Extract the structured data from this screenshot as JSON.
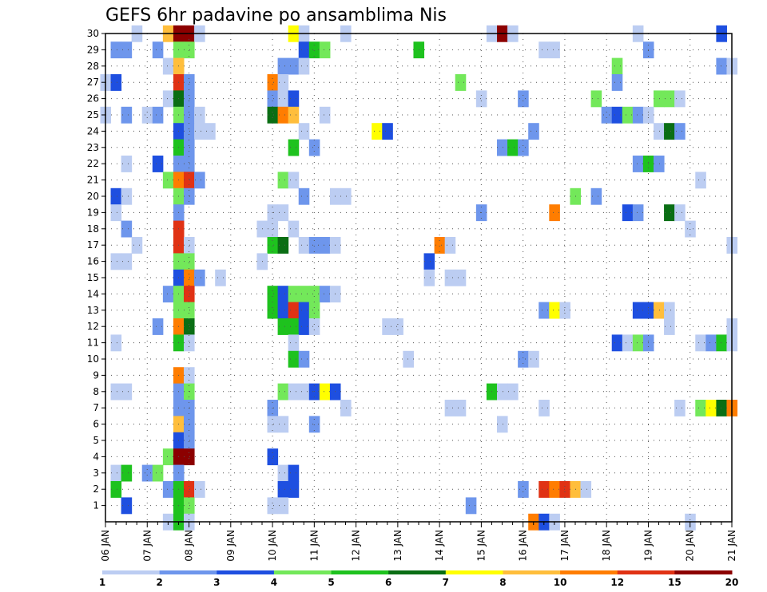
{
  "chart_data": {
    "type": "heatmap",
    "title": "GEFS 6hr padavine po ansamblima Nis",
    "xlabel": "",
    "ylabel": "",
    "x_axis": {
      "unit": "6-hour steps",
      "range": [
        0,
        60
      ],
      "tick_labels": [
        "06 JAN",
        "07 JAN",
        "08 JAN",
        "09 JAN",
        "10 JAN",
        "11 JAN",
        "12 JAN",
        "13 JAN",
        "14 JAN",
        "15 JAN",
        "16 JAN",
        "17 JAN",
        "18 JAN",
        "19 JAN",
        "20 JAN",
        "21 JAN"
      ]
    },
    "y_axis": {
      "tick_labels": [
        "1",
        "2",
        "3",
        "4",
        "5",
        "6",
        "7",
        "8",
        "9",
        "10",
        "11",
        "12",
        "13",
        "14",
        "15",
        "16",
        "17",
        "18",
        "19",
        "20",
        "21",
        "22",
        "23",
        "24",
        "25",
        "26",
        "27",
        "28",
        "29",
        "30"
      ],
      "range": [
        0,
        30
      ]
    },
    "grid": true,
    "colorbar": {
      "placement": "bottom",
      "colors": [
        "#bccdf2",
        "#6e96ec",
        "#1e4fe0",
        "#73e85a",
        "#1ec21e",
        "#0a6e14",
        "#ffff00",
        "#ffbe3c",
        "#ff7d00",
        "#e03214",
        "#8c0000"
      ],
      "tick_labels": [
        "1",
        "2",
        "3",
        "4",
        "5",
        "6",
        "7",
        "8",
        "10",
        "12",
        "15",
        "20"
      ]
    },
    "cells": [
      [
        30,
        3,
        0
      ],
      [
        30,
        6,
        7
      ],
      [
        30,
        7,
        10
      ],
      [
        30,
        8,
        10
      ],
      [
        30,
        9,
        0
      ],
      [
        30,
        18,
        6
      ],
      [
        30,
        19,
        0
      ],
      [
        30,
        23,
        0
      ],
      [
        30,
        37,
        0
      ],
      [
        30,
        38,
        10
      ],
      [
        30,
        39,
        0
      ],
      [
        30,
        51,
        0
      ],
      [
        30,
        59,
        2
      ],
      [
        29,
        1,
        1
      ],
      [
        29,
        2,
        1
      ],
      [
        29,
        5,
        1
      ],
      [
        29,
        7,
        3
      ],
      [
        29,
        8,
        3
      ],
      [
        29,
        19,
        2
      ],
      [
        29,
        20,
        4
      ],
      [
        29,
        21,
        3
      ],
      [
        29,
        30,
        4
      ],
      [
        29,
        42,
        0
      ],
      [
        29,
        43,
        0
      ],
      [
        29,
        52,
        1
      ],
      [
        28,
        6,
        0
      ],
      [
        28,
        7,
        7
      ],
      [
        28,
        17,
        1
      ],
      [
        28,
        18,
        1
      ],
      [
        28,
        19,
        0
      ],
      [
        28,
        49,
        3
      ],
      [
        28,
        59,
        1
      ],
      [
        28,
        60,
        0
      ],
      [
        27,
        0,
        0
      ],
      [
        27,
        1,
        2
      ],
      [
        27,
        7,
        9
      ],
      [
        27,
        8,
        1
      ],
      [
        27,
        16,
        8
      ],
      [
        27,
        17,
        0
      ],
      [
        27,
        34,
        3
      ],
      [
        27,
        49,
        1
      ],
      [
        26,
        6,
        0
      ],
      [
        26,
        7,
        5
      ],
      [
        26,
        8,
        1
      ],
      [
        26,
        16,
        1
      ],
      [
        26,
        17,
        0
      ],
      [
        26,
        18,
        2
      ],
      [
        26,
        36,
        0
      ],
      [
        26,
        40,
        1
      ],
      [
        26,
        47,
        3
      ],
      [
        26,
        53,
        3
      ],
      [
        26,
        54,
        3
      ],
      [
        26,
        55,
        0
      ],
      [
        25,
        0,
        0
      ],
      [
        25,
        2,
        1
      ],
      [
        25,
        4,
        0
      ],
      [
        25,
        5,
        1
      ],
      [
        25,
        7,
        3
      ],
      [
        25,
        8,
        1
      ],
      [
        25,
        9,
        0
      ],
      [
        25,
        16,
        5
      ],
      [
        25,
        17,
        8
      ],
      [
        25,
        18,
        7
      ],
      [
        25,
        21,
        0
      ],
      [
        25,
        48,
        1
      ],
      [
        25,
        49,
        2
      ],
      [
        25,
        50,
        3
      ],
      [
        25,
        51,
        1
      ],
      [
        25,
        52,
        0
      ],
      [
        24,
        7,
        2
      ],
      [
        24,
        8,
        1
      ],
      [
        24,
        9,
        0
      ],
      [
        24,
        10,
        0
      ],
      [
        24,
        19,
        0
      ],
      [
        24,
        26,
        6
      ],
      [
        24,
        27,
        2
      ],
      [
        24,
        41,
        1
      ],
      [
        24,
        53,
        0
      ],
      [
        24,
        54,
        5
      ],
      [
        24,
        55,
        1
      ],
      [
        23,
        7,
        4
      ],
      [
        23,
        8,
        1
      ],
      [
        23,
        18,
        4
      ],
      [
        23,
        20,
        1
      ],
      [
        23,
        38,
        1
      ],
      [
        23,
        39,
        4
      ],
      [
        23,
        40,
        1
      ],
      [
        22,
        2,
        0
      ],
      [
        22,
        5,
        2
      ],
      [
        22,
        7,
        1
      ],
      [
        22,
        8,
        1
      ],
      [
        22,
        51,
        1
      ],
      [
        22,
        52,
        4
      ],
      [
        22,
        53,
        1
      ],
      [
        21,
        6,
        3
      ],
      [
        21,
        7,
        8
      ],
      [
        21,
        8,
        9
      ],
      [
        21,
        9,
        1
      ],
      [
        21,
        17,
        3
      ],
      [
        21,
        18,
        0
      ],
      [
        21,
        57,
        0
      ],
      [
        20,
        1,
        2
      ],
      [
        20,
        2,
        0
      ],
      [
        20,
        7,
        3
      ],
      [
        20,
        8,
        1
      ],
      [
        20,
        19,
        1
      ],
      [
        20,
        22,
        0
      ],
      [
        20,
        23,
        0
      ],
      [
        20,
        45,
        3
      ],
      [
        20,
        47,
        1
      ],
      [
        19,
        1,
        0
      ],
      [
        19,
        7,
        1
      ],
      [
        19,
        16,
        0
      ],
      [
        19,
        17,
        0
      ],
      [
        19,
        36,
        1
      ],
      [
        19,
        43,
        8
      ],
      [
        19,
        50,
        2
      ],
      [
        19,
        51,
        1
      ],
      [
        19,
        54,
        5
      ],
      [
        19,
        55,
        0
      ],
      [
        18,
        2,
        1
      ],
      [
        18,
        7,
        9
      ],
      [
        18,
        15,
        0
      ],
      [
        18,
        16,
        0
      ],
      [
        18,
        18,
        0
      ],
      [
        18,
        56,
        0
      ],
      [
        17,
        3,
        0
      ],
      [
        17,
        7,
        9
      ],
      [
        17,
        8,
        0
      ],
      [
        17,
        16,
        4
      ],
      [
        17,
        17,
        5
      ],
      [
        17,
        19,
        0
      ],
      [
        17,
        20,
        1
      ],
      [
        17,
        21,
        1
      ],
      [
        17,
        22,
        0
      ],
      [
        17,
        32,
        8
      ],
      [
        17,
        33,
        0
      ],
      [
        17,
        60,
        0
      ],
      [
        16,
        1,
        0
      ],
      [
        16,
        2,
        0
      ],
      [
        16,
        7,
        3
      ],
      [
        16,
        8,
        3
      ],
      [
        16,
        15,
        0
      ],
      [
        16,
        31,
        2
      ],
      [
        15,
        7,
        2
      ],
      [
        15,
        8,
        8
      ],
      [
        15,
        9,
        1
      ],
      [
        15,
        11,
        0
      ],
      [
        15,
        31,
        0
      ],
      [
        15,
        33,
        0
      ],
      [
        15,
        34,
        0
      ],
      [
        14,
        6,
        1
      ],
      [
        14,
        7,
        3
      ],
      [
        14,
        8,
        9
      ],
      [
        14,
        16,
        4
      ],
      [
        14,
        17,
        2
      ],
      [
        14,
        18,
        3
      ],
      [
        14,
        19,
        3
      ],
      [
        14,
        20,
        3
      ],
      [
        14,
        21,
        1
      ],
      [
        14,
        22,
        0
      ],
      [
        13,
        7,
        3
      ],
      [
        13,
        8,
        3
      ],
      [
        13,
        16,
        4
      ],
      [
        13,
        17,
        2
      ],
      [
        13,
        18,
        9
      ],
      [
        13,
        19,
        2
      ],
      [
        13,
        20,
        3
      ],
      [
        13,
        42,
        1
      ],
      [
        13,
        43,
        6
      ],
      [
        13,
        44,
        0
      ],
      [
        13,
        51,
        2
      ],
      [
        13,
        52,
        2
      ],
      [
        13,
        53,
        7
      ],
      [
        13,
        54,
        0
      ],
      [
        12,
        5,
        1
      ],
      [
        12,
        7,
        8
      ],
      [
        12,
        8,
        5
      ],
      [
        12,
        17,
        4
      ],
      [
        12,
        18,
        4
      ],
      [
        12,
        19,
        2
      ],
      [
        12,
        20,
        0
      ],
      [
        12,
        27,
        0
      ],
      [
        12,
        28,
        0
      ],
      [
        12,
        54,
        0
      ],
      [
        12,
        60,
        0
      ],
      [
        11,
        1,
        0
      ],
      [
        11,
        7,
        4
      ],
      [
        11,
        8,
        0
      ],
      [
        11,
        18,
        0
      ],
      [
        11,
        49,
        2
      ],
      [
        11,
        50,
        0
      ],
      [
        11,
        51,
        3
      ],
      [
        11,
        52,
        1
      ],
      [
        11,
        57,
        0
      ],
      [
        11,
        58,
        1
      ],
      [
        11,
        59,
        4
      ],
      [
        11,
        60,
        0
      ],
      [
        10,
        18,
        4
      ],
      [
        10,
        19,
        1
      ],
      [
        10,
        29,
        0
      ],
      [
        10,
        40,
        1
      ],
      [
        10,
        41,
        0
      ],
      [
        9,
        7,
        8
      ],
      [
        9,
        8,
        0
      ],
      [
        8,
        1,
        0
      ],
      [
        8,
        2,
        0
      ],
      [
        8,
        7,
        1
      ],
      [
        8,
        8,
        3
      ],
      [
        8,
        17,
        3
      ],
      [
        8,
        18,
        0
      ],
      [
        8,
        19,
        0
      ],
      [
        8,
        20,
        2
      ],
      [
        8,
        21,
        6
      ],
      [
        8,
        22,
        2
      ],
      [
        8,
        37,
        4
      ],
      [
        8,
        38,
        0
      ],
      [
        8,
        39,
        0
      ],
      [
        7,
        7,
        1
      ],
      [
        7,
        8,
        1
      ],
      [
        7,
        16,
        1
      ],
      [
        7,
        23,
        0
      ],
      [
        7,
        33,
        0
      ],
      [
        7,
        34,
        0
      ],
      [
        7,
        42,
        0
      ],
      [
        7,
        55,
        0
      ],
      [
        7,
        57,
        3
      ],
      [
        7,
        58,
        6
      ],
      [
        7,
        59,
        5
      ],
      [
        7,
        60,
        8
      ],
      [
        6,
        7,
        7
      ],
      [
        6,
        8,
        1
      ],
      [
        6,
        16,
        0
      ],
      [
        6,
        17,
        0
      ],
      [
        6,
        20,
        1
      ],
      [
        6,
        38,
        0
      ],
      [
        5,
        7,
        2
      ],
      [
        5,
        8,
        1
      ],
      [
        4,
        6,
        3
      ],
      [
        4,
        7,
        10
      ],
      [
        4,
        8,
        10
      ],
      [
        4,
        16,
        2
      ],
      [
        3,
        1,
        0
      ],
      [
        3,
        2,
        4
      ],
      [
        3,
        4,
        1
      ],
      [
        3,
        5,
        3
      ],
      [
        3,
        7,
        1
      ],
      [
        3,
        17,
        0
      ],
      [
        3,
        18,
        2
      ],
      [
        2,
        1,
        4
      ],
      [
        2,
        6,
        1
      ],
      [
        2,
        7,
        4
      ],
      [
        2,
        8,
        9
      ],
      [
        2,
        9,
        0
      ],
      [
        2,
        17,
        2
      ],
      [
        2,
        18,
        2
      ],
      [
        2,
        40,
        1
      ],
      [
        2,
        42,
        9
      ],
      [
        2,
        43,
        8
      ],
      [
        2,
        44,
        9
      ],
      [
        2,
        45,
        7
      ],
      [
        2,
        46,
        0
      ],
      [
        1,
        2,
        2
      ],
      [
        1,
        7,
        4
      ],
      [
        1,
        8,
        3
      ],
      [
        1,
        16,
        0
      ],
      [
        1,
        17,
        0
      ],
      [
        1,
        35,
        1
      ],
      [
        0,
        6,
        0
      ],
      [
        0,
        7,
        4
      ],
      [
        0,
        8,
        0
      ],
      [
        0,
        41,
        8
      ],
      [
        0,
        42,
        2
      ],
      [
        0,
        43,
        0
      ],
      [
        0,
        56,
        0
      ]
    ]
  }
}
